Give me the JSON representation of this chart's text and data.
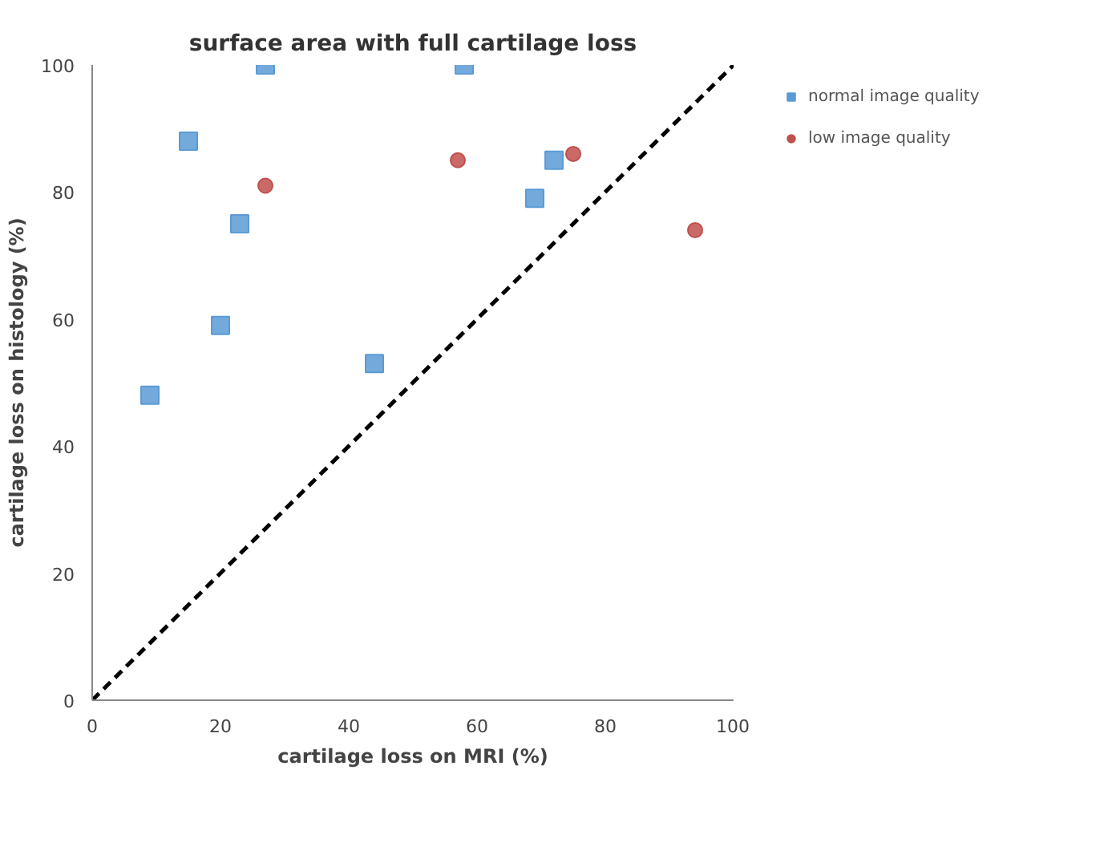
{
  "chart_data": {
    "type": "scatter",
    "title": "surface area with full cartilage loss",
    "xlabel": "cartilage loss on MRI (%)",
    "ylabel": "cartilage loss on histology (%)",
    "xlim": [
      0,
      100
    ],
    "ylim": [
      0,
      100
    ],
    "xticks": [
      0,
      20,
      40,
      60,
      80,
      100
    ],
    "yticks": [
      0,
      20,
      40,
      60,
      80,
      100
    ],
    "grid": false,
    "legend": "right",
    "series": [
      {
        "name": "normal image quality",
        "color": "#5b9bd5",
        "marker": "square",
        "x": [
          27,
          58,
          15,
          72,
          69,
          23,
          20,
          44,
          9
        ],
        "values": [
          100,
          100,
          88,
          85,
          79,
          75,
          59,
          53,
          48
        ]
      },
      {
        "name": "low image quality",
        "color": "#c0504d",
        "marker": "circle",
        "x": [
          27,
          57,
          75,
          94
        ],
        "values": [
          81,
          85,
          86,
          74
        ]
      },
      {
        "type": "line",
        "color": "#000000",
        "line_style": "dashed",
        "marker": "none",
        "x": [
          0,
          100
        ],
        "values": [
          0,
          100
        ]
      }
    ]
  }
}
